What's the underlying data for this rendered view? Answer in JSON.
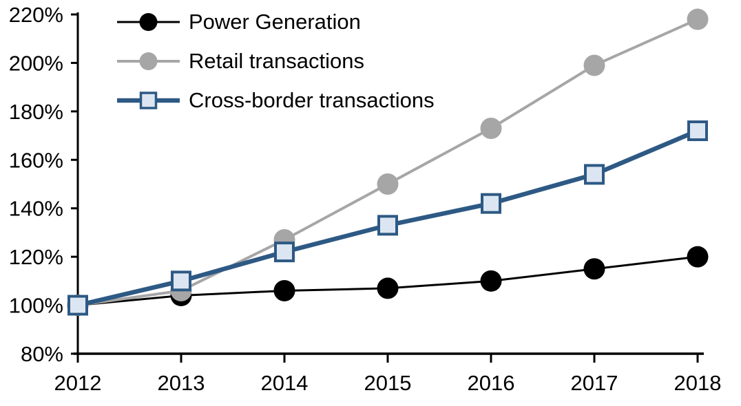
{
  "chart_data": {
    "type": "line",
    "title": "",
    "categories": [
      "2012",
      "2013",
      "2014",
      "2015",
      "2016",
      "2017",
      "2018"
    ],
    "xlabel": "",
    "ylabel": "",
    "y_axis": {
      "min": 80,
      "max": 220,
      "tick_step": 20,
      "tick_labels": [
        "80%",
        "100%",
        "120%",
        "140%",
        "160%",
        "180%",
        "200%",
        "220%"
      ],
      "grid": false
    },
    "legend": {
      "position": "top-left",
      "items": [
        "Power Generation",
        "Retail transactions",
        "Cross-border transactions"
      ]
    },
    "series": [
      {
        "name": "Power Generation",
        "values": [
          100,
          104,
          106,
          107,
          110,
          115,
          120
        ],
        "color": "#000000",
        "marker": "circle",
        "marker_fill": "#000000",
        "line_width": 3
      },
      {
        "name": "Retail transactions",
        "values": [
          100,
          106,
          127,
          150,
          173,
          199,
          218
        ],
        "color": "#a6a6a6",
        "marker": "circle",
        "marker_fill": "#a6a6a6",
        "line_width": 4
      },
      {
        "name": "Cross-border transactions",
        "values": [
          100,
          110,
          122,
          133,
          142,
          154,
          172
        ],
        "color": "#2d5984",
        "marker": "square",
        "marker_fill": "#dce6f2",
        "line_width": 6.5
      }
    ],
    "axis_color": "#000000",
    "tick_label_color": "#000000"
  }
}
